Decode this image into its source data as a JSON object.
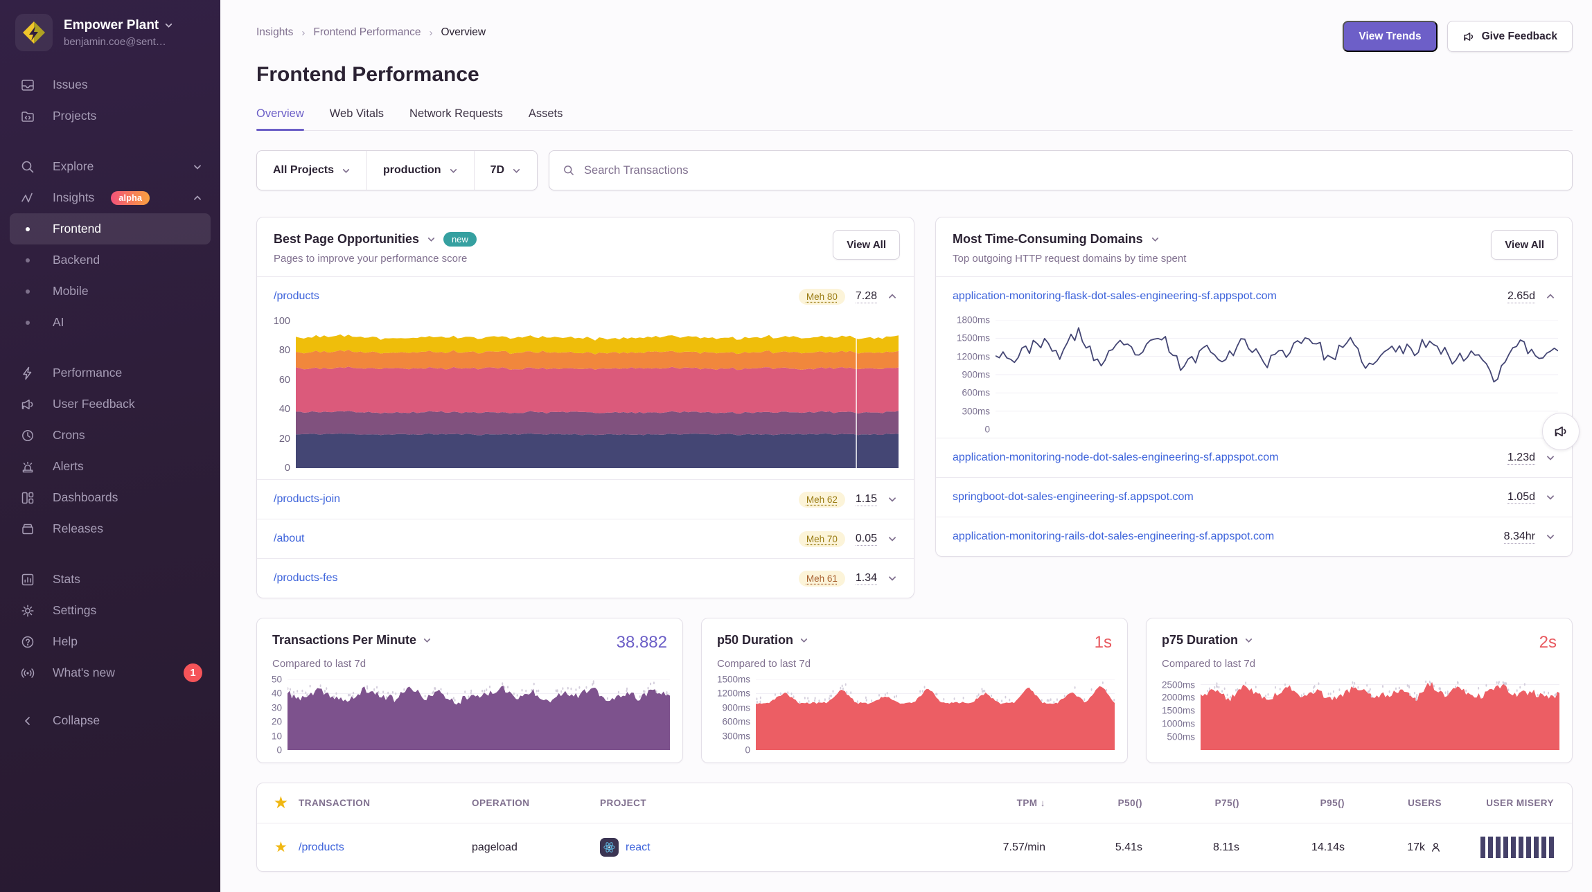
{
  "colors": {
    "accent_purple": "#6C5FC7",
    "link_blue": "#3D63DB",
    "alert_red": "#E8595F",
    "badge_red": "#F55459",
    "meh_olive": "#9A7B12",
    "meh_red": "#A8602F",
    "new_badge_teal": "#35A0A0",
    "navy_series": "#444674",
    "tpm_purple": "#7D528D",
    "duration_red": "#EC5E64"
  },
  "sidebar": {
    "org_name": "Empower Plant",
    "org_email": "benjamin.coe@sent…",
    "items": [
      {
        "label": "Issues"
      },
      {
        "label": "Projects"
      },
      {
        "label": "Explore"
      },
      {
        "label": "Insights"
      },
      {
        "label": "Frontend"
      },
      {
        "label": "Backend"
      },
      {
        "label": "Mobile"
      },
      {
        "label": "AI"
      },
      {
        "label": "Performance"
      },
      {
        "label": "User Feedback"
      },
      {
        "label": "Crons"
      },
      {
        "label": "Alerts"
      },
      {
        "label": "Dashboards"
      },
      {
        "label": "Releases"
      },
      {
        "label": "Stats"
      },
      {
        "label": "Settings"
      }
    ],
    "insights_badge": "alpha",
    "footer": {
      "help": "Help",
      "whats_new": "What's new",
      "whats_new_count": "1",
      "collapse": "Collapse"
    }
  },
  "header": {
    "breadcrumb": [
      "Insights",
      "Frontend Performance",
      "Overview"
    ],
    "title": "Frontend Performance",
    "view_trends": "View Trends",
    "give_feedback": "Give Feedback"
  },
  "tabs": {
    "t0": "Overview",
    "t1": "Web Vitals",
    "t2": "Network Requests",
    "t3": "Assets"
  },
  "filters": {
    "project": "All Projects",
    "environment": "production",
    "range": "7D",
    "search_placeholder": "Search Transactions"
  },
  "opportunities": {
    "title": "Best Page Opportunities",
    "badge": "new",
    "view_all": "View All",
    "subtitle": "Pages to improve your performance score",
    "rows": [
      {
        "page": "/products",
        "badge": "Meh 80",
        "badge_color": "#9A7B12",
        "value": "7.28"
      },
      {
        "page": "/products-join",
        "badge": "Meh 62",
        "badge_color": "#9A7B12",
        "value": "1.15"
      },
      {
        "page": "/about",
        "badge": "Meh 70",
        "badge_color": "#9A7B12",
        "value": "0.05"
      },
      {
        "page": "/products-fes",
        "badge": "Meh 61",
        "badge_color": "#A8602F",
        "value": "1.34"
      }
    ]
  },
  "domains": {
    "title": "Most Time-Consuming Domains",
    "view_all": "View All",
    "subtitle": "Top outgoing HTTP request domains by time spent",
    "rows": [
      {
        "domain": "application-monitoring-flask-dot-sales-engineering-sf.appspot.com",
        "value": "2.65d"
      },
      {
        "domain": "application-monitoring-node-dot-sales-engineering-sf.appspot.com",
        "value": "1.23d"
      },
      {
        "domain": "springboot-dot-sales-engineering-sf.appspot.com",
        "value": "1.05d"
      },
      {
        "domain": "application-monitoring-rails-dot-sales-engineering-sf.appspot.com",
        "value": "8.34hr"
      }
    ]
  },
  "metrics": {
    "tpm": {
      "title": "Transactions Per Minute",
      "value": "38.882",
      "subtitle": "Compared to last 7d"
    },
    "p50": {
      "title": "p50 Duration",
      "value": "1s",
      "subtitle": "Compared to last 7d"
    },
    "p75": {
      "title": "p75 Duration",
      "value": "2s",
      "subtitle": "Compared to last 7d"
    }
  },
  "table": {
    "headers": {
      "transaction": "TRANSACTION",
      "operation": "OPERATION",
      "project": "PROJECT",
      "tpm": "TPM",
      "p50": "P50()",
      "p75": "P75()",
      "p95": "P95()",
      "users": "USERS",
      "user_misery": "USER MISERY"
    },
    "sort_column": "TPM",
    "row": {
      "transaction": "/products",
      "operation": "pageload",
      "project": "react",
      "tpm": "7.57/min",
      "p50": "5.41s",
      "p75": "8.11s",
      "p95": "14.14s",
      "users": "17k",
      "misery_bars": 10
    }
  },
  "chart_data": [
    {
      "id": "page-score",
      "type": "stacked_area",
      "title": "/products performance score breakdown",
      "ylim": [
        0,
        100
      ],
      "grid": false,
      "seed": 11,
      "n": 150,
      "noise": 0.5,
      "cursor": 0.93,
      "yticks": [
        {
          "v": 0,
          "label": "0"
        },
        {
          "v": 20,
          "label": "20"
        },
        {
          "v": 40,
          "label": "40"
        },
        {
          "v": 60,
          "label": "60"
        },
        {
          "v": 80,
          "label": "80"
        },
        {
          "v": 100,
          "label": "100"
        }
      ],
      "layers": [
        {
          "name": "band-navy",
          "color": "#444674",
          "values": [
            23,
            23.4,
            22.8,
            23.2,
            22.9,
            23.3,
            23,
            22.7,
            23.2,
            23,
            22.8,
            23.3,
            23,
            23.1
          ]
        },
        {
          "name": "band-purple",
          "color": "#80517E",
          "values": [
            15,
            15.4,
            14.8,
            15.2,
            15,
            14.7,
            15.3,
            15,
            15.2,
            14.8,
            15.1,
            15,
            14.9,
            15.2
          ]
        },
        {
          "name": "band-pink",
          "color": "#DB5A7B",
          "values": [
            30,
            29.5,
            30.4,
            29.8,
            30.2,
            30,
            29.6,
            30.3,
            30,
            29.8,
            30.2,
            29.7,
            30.1,
            30
          ]
        },
        {
          "name": "band-orange",
          "color": "#F1873C",
          "values": [
            11,
            11.4,
            10.7,
            11.2,
            10.9,
            11.3,
            11,
            10.8,
            11.2,
            11,
            10.9,
            11.3,
            11,
            11.1
          ]
        },
        {
          "name": "band-yellow",
          "color": "#EFBE0B",
          "values": [
            10,
            10.5,
            9.7,
            10.3,
            9.9,
            10.4,
            10,
            9.8,
            10.3,
            10,
            9.9,
            10.4,
            10,
            10.2
          ]
        }
      ]
    },
    {
      "id": "domain-flask",
      "type": "line",
      "title": "flask domain avg duration",
      "color": "#444674",
      "ylim": [
        0,
        1800
      ],
      "grid": true,
      "seed": 23,
      "n": 150,
      "noise": 110,
      "yticks": [
        {
          "v": 0,
          "label": "0"
        },
        {
          "v": 300,
          "label": "300ms"
        },
        {
          "v": 600,
          "label": "600ms"
        },
        {
          "v": 900,
          "label": "900ms"
        },
        {
          "v": 1200,
          "label": "1200ms"
        },
        {
          "v": 1500,
          "label": "1500ms"
        },
        {
          "v": 1800,
          "label": "1800ms"
        }
      ],
      "values": [
        1300,
        1150,
        1480,
        1220,
        1600,
        1050,
        1380,
        1250,
        1520,
        980,
        1350,
        1200,
        1450,
        1100,
        1300,
        1560,
        1150,
        1420,
        1000,
        1350,
        1280,
        1500,
        1100,
        1320,
        850,
        1450,
        1180,
        1360
      ]
    },
    {
      "id": "tpm-chart",
      "type": "area",
      "title": "Transactions Per Minute",
      "color": "#7D528D",
      "ylim": [
        0,
        50
      ],
      "grid": true,
      "seed": 37,
      "n": 180,
      "noise": 2.5,
      "dots": {
        "color": "#D4CEDC",
        "count": 85
      },
      "yticks": [
        {
          "v": 0,
          "label": "0"
        },
        {
          "v": 10,
          "label": "10"
        },
        {
          "v": 20,
          "label": "20"
        },
        {
          "v": 30,
          "label": "30"
        },
        {
          "v": 40,
          "label": "40"
        },
        {
          "v": 50,
          "label": "50"
        }
      ],
      "values": [
        40,
        36,
        42,
        38,
        34,
        43,
        39,
        36,
        44,
        37,
        41,
        33,
        40,
        38,
        45,
        36,
        42,
        35,
        41,
        39,
        43,
        34,
        40,
        37,
        42,
        38
      ]
    },
    {
      "id": "p50-chart",
      "type": "area",
      "title": "p50 Duration",
      "color": "#EC5E64",
      "ylim": [
        0,
        1500
      ],
      "grid": true,
      "seed": 51,
      "n": 190,
      "noise": 22,
      "dots": {
        "color": "#D4CEDC",
        "count": 70
      },
      "yticks": [
        {
          "v": 0,
          "label": "0"
        },
        {
          "v": 300,
          "label": "300ms"
        },
        {
          "v": 600,
          "label": "600ms"
        },
        {
          "v": 900,
          "label": "900ms"
        },
        {
          "v": 1200,
          "label": "1200ms"
        },
        {
          "v": 1500,
          "label": "1500ms"
        }
      ],
      "values": [
        1000,
        1005,
        1230,
        995,
        1000,
        1010,
        1290,
        1000,
        990,
        1160,
        1005,
        1000,
        1320,
        995,
        1010,
        1000,
        1210,
        990,
        1000,
        1340,
        1005,
        995,
        1240,
        1000,
        1390,
        1010
      ]
    },
    {
      "id": "p75-chart",
      "type": "area",
      "title": "p75 Duration",
      "color": "#EC5E64",
      "ylim": [
        0,
        2700
      ],
      "grid": true,
      "seed": 64,
      "n": 170,
      "noise": 130,
      "dots": {
        "color": "#D4CEDC",
        "count": 85
      },
      "yticks": [
        {
          "v": 500,
          "label": "500ms"
        },
        {
          "v": 1000,
          "label": "1000ms"
        },
        {
          "v": 1500,
          "label": "1500ms"
        },
        {
          "v": 2000,
          "label": "2000ms"
        },
        {
          "v": 2500,
          "label": "2500ms"
        }
      ],
      "values": [
        2050,
        2250,
        1950,
        2400,
        2100,
        1980,
        2500,
        2080,
        2280,
        1950,
        2180,
        2420,
        2000,
        2120,
        2330,
        1960,
        2550,
        2060,
        2370,
        2000,
        2170,
        2500,
        2050,
        2270,
        1950,
        2150
      ]
    }
  ]
}
